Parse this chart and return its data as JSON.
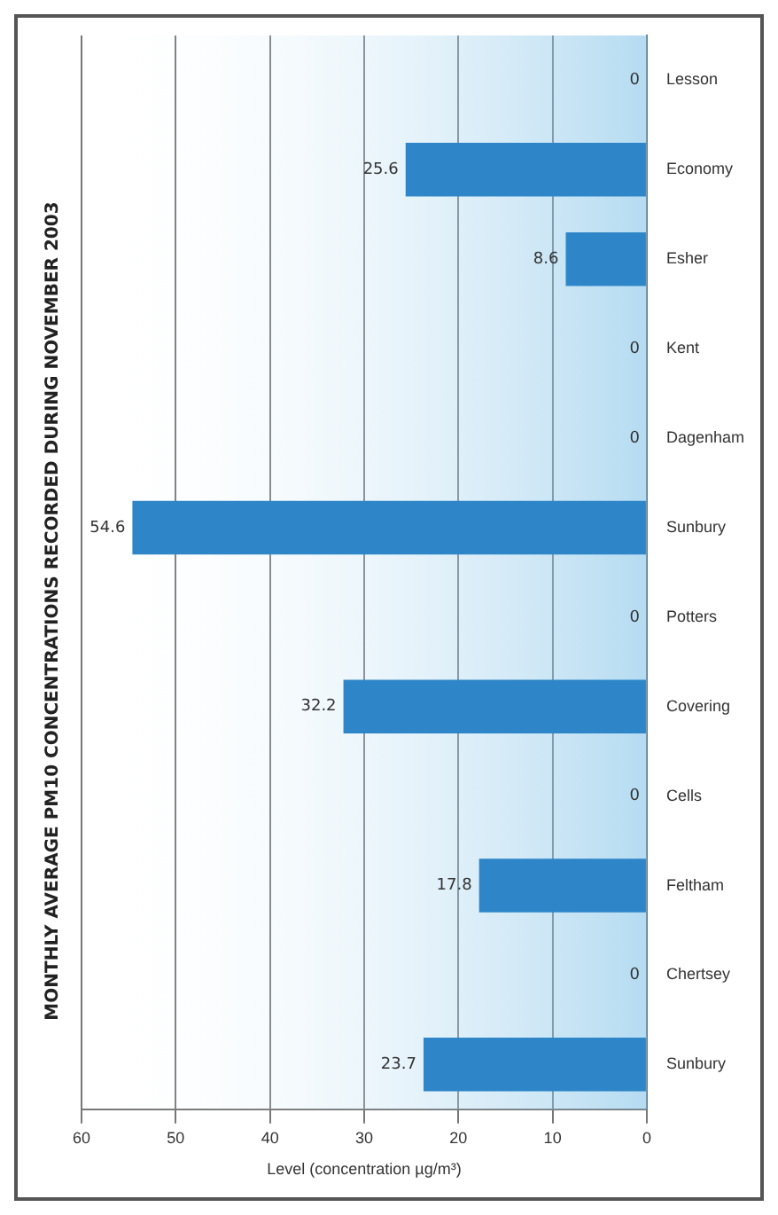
{
  "chart_data": {
    "type": "bar",
    "orientation": "horizontal",
    "title": "MONTHLY AVERAGE PM10 CONCENTRATIONS RECORDED DURING NOVEMBER 2003",
    "xlabel": "Level (concentration µg/m³)",
    "categories": [
      "Lesson",
      "Economy",
      "Esher",
      "Kent",
      "Dagenham",
      "Sunbury",
      "Potters",
      "Covering",
      "Cells",
      "Feltham",
      "Chertsey",
      "Sunbury"
    ],
    "values": [
      0,
      25.6,
      8.6,
      0,
      0,
      54.6,
      0,
      32.2,
      0,
      17.8,
      0,
      23.7
    ],
    "color": "#2e86c8",
    "xlim": [
      60,
      0
    ],
    "xticks": [
      60,
      50,
      40,
      30,
      20,
      10,
      0
    ],
    "grid": "x",
    "data_labels": true
  }
}
